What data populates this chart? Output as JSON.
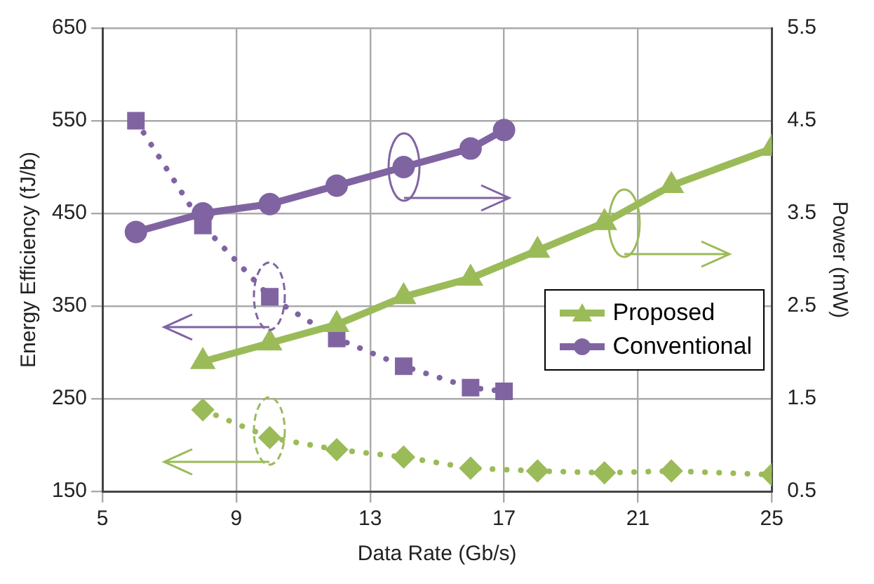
{
  "chart_data": {
    "type": "line",
    "xlabel": "Data Rate (Gb/s)",
    "ylabel": "Energy Efficiency (fJ/b)",
    "y2label": "Power (mW)",
    "xlim": [
      5,
      25
    ],
    "xticks": [
      5,
      9,
      13,
      17,
      21,
      25
    ],
    "ylim": [
      150,
      650
    ],
    "yticks": [
      150,
      250,
      350,
      450,
      550,
      650
    ],
    "y2lim": [
      0.5,
      5.5
    ],
    "y2ticks": [
      0.5,
      1.5,
      2.5,
      3.5,
      4.5,
      5.5
    ],
    "grid": true,
    "legend": "right",
    "series": [
      {
        "name": "Proposed",
        "color": "#9bbb59",
        "axis": "y2",
        "marker": "triangle",
        "line_style": "solid",
        "x": [
          8,
          10,
          12,
          14,
          16,
          18,
          20,
          22,
          25
        ],
        "values": [
          1.9,
          2.1,
          2.3,
          2.6,
          2.8,
          3.1,
          3.4,
          3.8,
          4.2
        ]
      },
      {
        "name": "Conventional",
        "color": "#8064a2",
        "axis": "y2",
        "marker": "circle",
        "line_style": "solid",
        "x": [
          6,
          8,
          10,
          12,
          14,
          16,
          17
        ],
        "values": [
          3.3,
          3.5,
          3.6,
          3.8,
          4.0,
          4.2,
          4.4
        ]
      },
      {
        "color": "#8064a2",
        "axis": "y",
        "marker": "square",
        "line_style": "dotted",
        "x": [
          6,
          8,
          10,
          12,
          14,
          16,
          17
        ],
        "values": [
          550,
          437,
          360,
          315,
          285,
          262,
          258
        ]
      },
      {
        "color": "#9bbb59",
        "axis": "y",
        "marker": "diamond",
        "line_style": "dotted",
        "x": [
          8,
          10,
          12,
          14,
          16,
          18,
          20,
          22,
          25
        ],
        "values": [
          238,
          208,
          195,
          187,
          175,
          172,
          170,
          172,
          168
        ]
      }
    ]
  }
}
